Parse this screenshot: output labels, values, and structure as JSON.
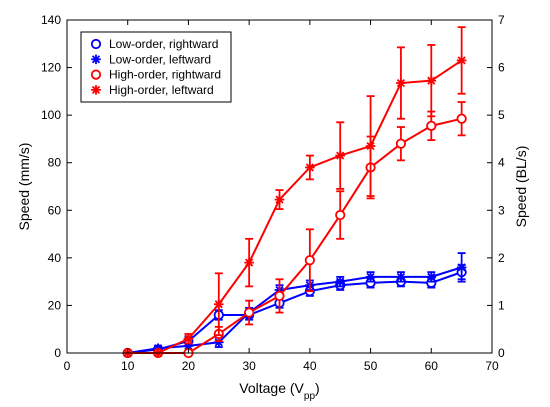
{
  "chart_data": {
    "type": "line",
    "x": [
      10,
      15,
      20,
      25,
      30,
      35,
      40,
      45,
      50,
      55,
      60,
      65
    ],
    "xlabel": "Voltage (V",
    "xlabel_sub": "pp",
    "xlabel_close": ")",
    "ylabel": "Speed (mm/s)",
    "ylabel_right": "Speed (BL/s)",
    "xlim": [
      0,
      70
    ],
    "ylim": [
      0,
      140
    ],
    "ylim_right": [
      0,
      7
    ],
    "xticks": [
      0,
      10,
      20,
      30,
      40,
      50,
      60,
      70
    ],
    "yticks": [
      0,
      20,
      40,
      60,
      80,
      100,
      120,
      140
    ],
    "yticks_right": [
      0,
      1,
      2,
      3,
      4,
      5,
      6,
      7
    ],
    "grid": false,
    "legend_position": "top-left",
    "series": [
      {
        "name": "Low-order, rightward",
        "color": "#0000ff",
        "marker": "circle",
        "values": [
          0,
          1.5,
          5,
          16,
          16,
          21,
          26,
          28.5,
          29.5,
          30,
          29.5,
          34
        ],
        "errors": [
          0,
          1,
          2,
          2,
          2,
          2,
          2,
          2,
          2,
          2,
          2,
          3
        ]
      },
      {
        "name": "Low-order, leftward",
        "color": "#0000ff",
        "marker": "asterisk",
        "values": [
          0,
          2,
          3,
          4.5,
          17,
          26.5,
          28.5,
          30,
          32,
          32,
          32,
          36
        ],
        "errors": [
          0,
          1,
          3,
          2,
          2,
          2,
          2,
          2,
          2,
          2,
          2,
          6
        ]
      },
      {
        "name": "High-order, rightward",
        "color": "#ff0000",
        "marker": "circle",
        "values": [
          0,
          0,
          0,
          8,
          17,
          24,
          39,
          58,
          78,
          88,
          95.5,
          98.5
        ],
        "errors": [
          0,
          0,
          0,
          3,
          5,
          7,
          13,
          10,
          13,
          7,
          6,
          7
        ]
      },
      {
        "name": "High-order, leftward",
        "color": "#ff0000",
        "marker": "asterisk",
        "values": [
          0,
          0,
          6,
          20.5,
          38,
          64.5,
          78,
          83,
          87,
          113.5,
          114.5,
          123
        ],
        "errors": [
          0,
          0,
          2,
          13,
          10,
          4,
          5,
          14,
          21,
          15,
          15,
          14
        ]
      }
    ]
  }
}
